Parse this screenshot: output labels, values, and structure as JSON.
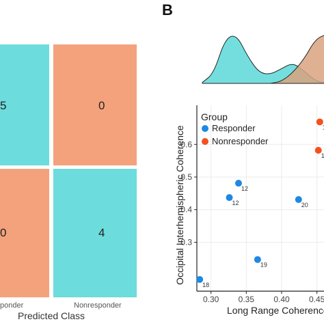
{
  "panel_label": "B",
  "confusion_matrix": {
    "colors": {
      "correct": "#6ddcdc",
      "incorrect": "#f4a27c"
    },
    "cells": [
      "5",
      "0",
      "0",
      "4"
    ],
    "x_ticks": [
      "ponder",
      "Nonresponder"
    ],
    "xlabel": "Predicted Class"
  },
  "chart_data": [
    {
      "type": "area",
      "title": "",
      "xlabel": "",
      "ylabel": "",
      "series": [
        {
          "name": "Responder",
          "color": "#6ddcdc",
          "x": [
            0.26,
            0.28,
            0.3,
            0.32,
            0.34,
            0.36,
            0.38,
            0.4,
            0.42,
            0.44,
            0.46,
            0.48
          ],
          "values": [
            0.02,
            0.2,
            0.9,
            1.0,
            0.55,
            0.22,
            0.18,
            0.3,
            0.42,
            0.25,
            0.05,
            0.0
          ]
        },
        {
          "name": "Nonresponder",
          "color": "#d9a37f",
          "x": [
            0.38,
            0.4,
            0.42,
            0.44,
            0.46,
            0.48
          ],
          "values": [
            0.0,
            0.04,
            0.22,
            0.5,
            0.9,
            1.0
          ]
        }
      ]
    },
    {
      "type": "scatter",
      "title": "",
      "xlabel": "Long Range Coherence",
      "ylabel": "Occipital Interhemispheric Coherence",
      "xlim": [
        0.28,
        0.46
      ],
      "ylim": [
        0.15,
        0.72
      ],
      "x_ticks": [
        "0.30",
        "0.35",
        "0.40",
        "0.45"
      ],
      "y_ticks": [
        "0.3",
        "0.4",
        "0.5",
        "0.6"
      ],
      "grid": true,
      "legend": {
        "title": "Group",
        "placement": "top-left",
        "entries": [
          {
            "name": "Responder",
            "color": "#1e88e5"
          },
          {
            "name": "Nonresponder",
            "color": "#f4511e"
          }
        ]
      },
      "series": [
        {
          "name": "Responder",
          "color": "#1e88e5",
          "points": [
            {
              "x": 0.284,
              "y": 0.186,
              "label": "18"
            },
            {
              "x": 0.339,
              "y": 0.481,
              "label": "12"
            },
            {
              "x": 0.326,
              "y": 0.437,
              "label": "12"
            },
            {
              "x": 0.366,
              "y": 0.247,
              "label": "19"
            },
            {
              "x": 0.424,
              "y": 0.431,
              "label": "20"
            }
          ]
        },
        {
          "name": "Nonresponder",
          "color": "#f4511e",
          "points": [
            {
              "x": 0.454,
              "y": 0.669,
              "label": "1"
            },
            {
              "x": 0.452,
              "y": 0.582,
              "label": "1"
            }
          ]
        }
      ]
    }
  ]
}
